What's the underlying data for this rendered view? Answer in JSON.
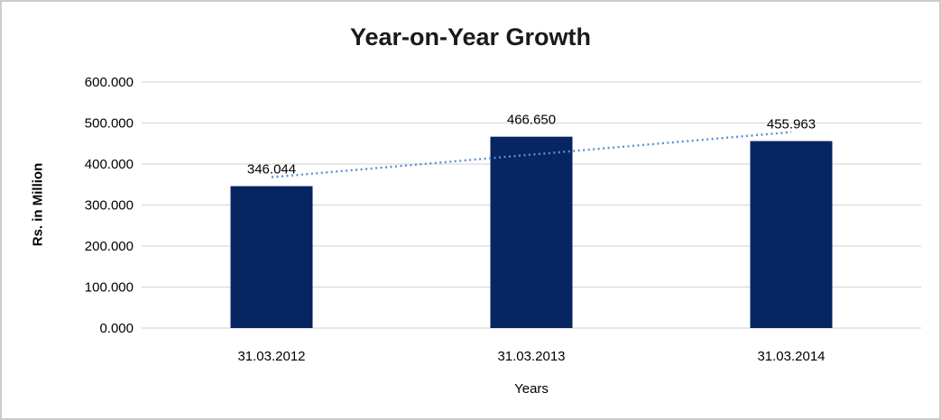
{
  "window": {
    "background": "#ffffff",
    "border_color": "#cccccc"
  },
  "chart_data": {
    "type": "bar",
    "title": "Year-on-Year Growth",
    "xlabel": "Years",
    "ylabel": "Rs. in Million",
    "categories": [
      "31.03.2012",
      "31.03.2013",
      "31.03.2014"
    ],
    "values": [
      346.044,
      466.65,
      455.963
    ],
    "value_labels": [
      "346.044",
      "466.650",
      "455.963"
    ],
    "y_ticks": [
      {
        "value": 0,
        "label": "0.000"
      },
      {
        "value": 100,
        "label": "100.000"
      },
      {
        "value": 200,
        "label": "200.000"
      },
      {
        "value": 300,
        "label": "300.000"
      },
      {
        "value": 400,
        "label": "400.000"
      },
      {
        "value": 500,
        "label": "500.000"
      },
      {
        "value": 600,
        "label": "600.000"
      }
    ],
    "ylim": [
      0,
      600
    ],
    "grid": true,
    "legend": "none",
    "trendline": {
      "type": "linear",
      "style": "dotted",
      "color": "#5b8fd4"
    },
    "colors": {
      "bar": "#062561",
      "gridline": "#d9d9d9",
      "label_text": "#000000",
      "title_text": "#1a1a1a"
    }
  }
}
